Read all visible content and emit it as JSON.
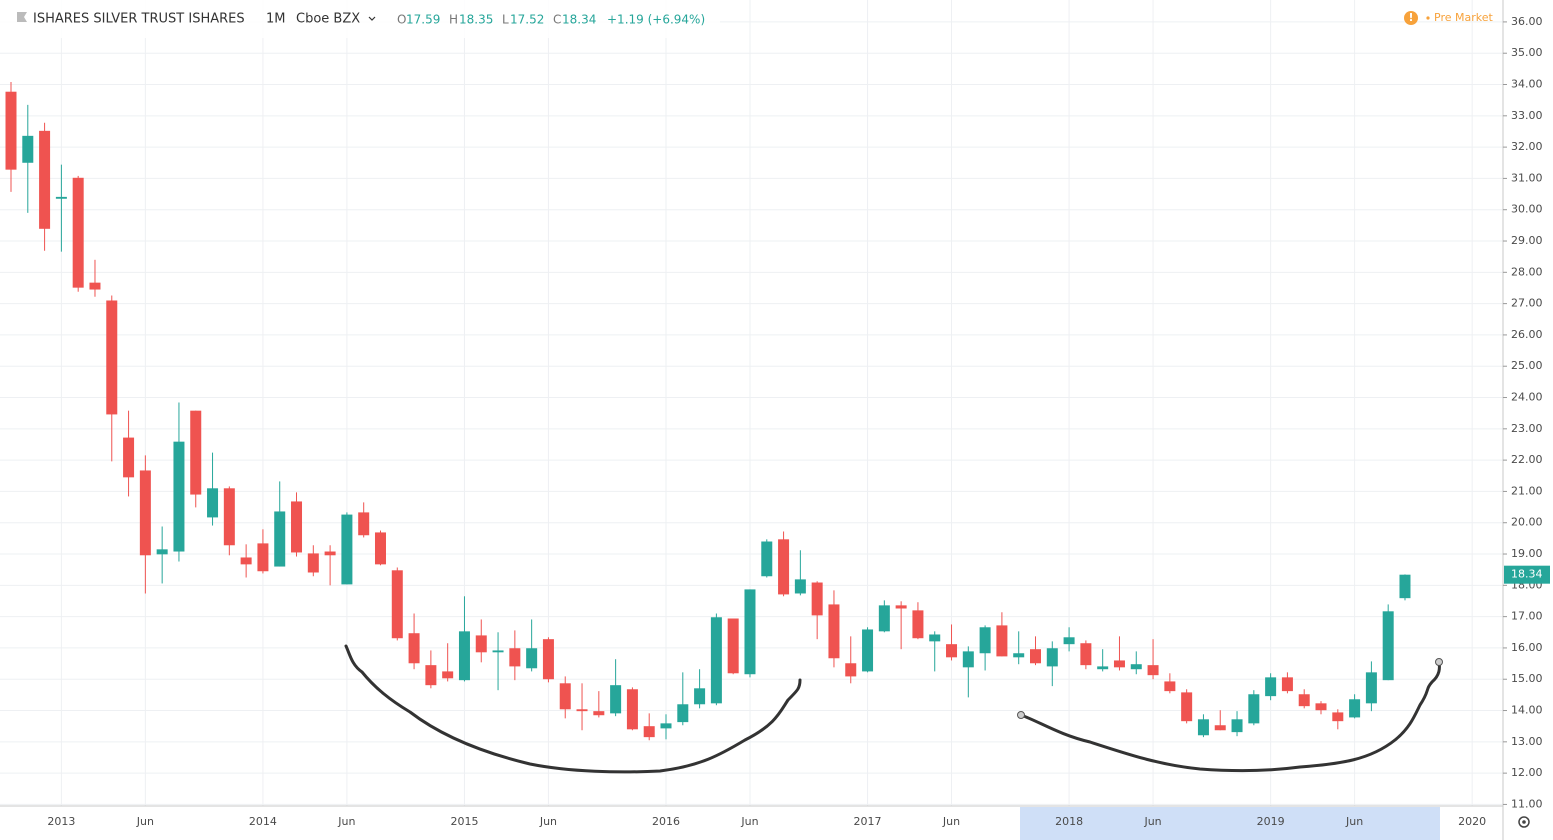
{
  "header": {
    "symbol": "ISHARES SILVER TRUST ISHARES",
    "interval": "1M",
    "exchange": "Cboe BZX",
    "open_label": "O",
    "high_label": "H",
    "low_label": "L",
    "close_label": "C",
    "change": "+1.19 (+6.94%)",
    "status": "Pre Market"
  },
  "chart_data": {
    "type": "candlestick",
    "up_color": "#26a69a",
    "down_color": "#ef5350",
    "grid": true,
    "categories": [
      null,
      null,
      null,
      "2013",
      null,
      null,
      null,
      null,
      "Jun",
      null,
      null,
      null,
      null,
      null,
      null,
      "2014",
      null,
      null,
      null,
      null,
      "Jun",
      null,
      null,
      null,
      null,
      null,
      null,
      "2015",
      null,
      null,
      null,
      null,
      "Jun",
      null,
      null,
      null,
      null,
      null,
      null,
      "2016",
      null,
      null,
      null,
      null,
      "Jun",
      null,
      null,
      null,
      null,
      null,
      null,
      "2017",
      null,
      null,
      null,
      null,
      "Jun",
      null,
      null,
      null,
      null,
      null,
      null,
      "2018",
      null,
      null,
      null,
      null,
      "Jun",
      null,
      null,
      null,
      null,
      null,
      null,
      "2019",
      null,
      null,
      null,
      null,
      "Jun",
      null,
      null,
      null,
      null,
      null,
      null,
      "2020"
    ],
    "open": [
      33.77,
      31.5,
      32.52,
      30.35,
      31.02,
      27.67,
      27.1,
      22.72,
      21.67,
      18.99,
      19.08,
      23.58,
      20.17,
      21.1,
      18.89,
      19.34,
      18.6,
      20.68,
      19.02,
      19.08,
      18.03,
      20.33,
      19.69,
      18.48,
      16.47,
      15.45,
      15.25,
      14.97,
      16.4,
      15.86,
      15.99,
      15.35,
      16.28,
      14.87,
      14.04,
      13.98,
      13.91,
      14.68,
      13.5,
      13.43,
      13.63,
      14.2,
      14.23,
      16.94,
      15.16,
      18.29,
      19.47,
      17.74,
      18.09,
      17.39,
      15.51,
      15.25,
      16.53,
      17.36,
      17.2,
      16.21,
      16.12,
      15.38,
      15.83,
      16.72,
      15.7,
      15.96,
      15.41,
      16.12,
      16.15,
      15.32,
      15.6,
      15.32,
      15.45,
      14.93,
      14.58,
      13.21,
      13.53,
      13.31,
      13.59,
      14.46,
      15.06,
      14.52,
      14.23,
      13.94,
      13.78,
      14.23,
      14.97,
      17.59,
      null,
      null,
      null,
      null
    ],
    "high": [
      34.08,
      33.35,
      32.78,
      31.44,
      31.08,
      28.4,
      27.26,
      23.58,
      22.15,
      19.88,
      23.84,
      23.58,
      22.24,
      21.16,
      19.31,
      19.79,
      21.32,
      20.97,
      19.28,
      19.28,
      20.33,
      20.65,
      19.75,
      18.57,
      17.1,
      15.92,
      16.15,
      17.65,
      16.91,
      16.5,
      16.56,
      16.91,
      16.34,
      15.09,
      14.87,
      14.62,
      15.64,
      14.74,
      13.91,
      13.88,
      15.22,
      15.32,
      17.1,
      16.94,
      17.87,
      19.47,
      19.72,
      19.12,
      18.13,
      17.84,
      16.37,
      16.66,
      17.52,
      17.49,
      17.46,
      16.53,
      16.75,
      16.05,
      16.72,
      17.14,
      16.53,
      16.37,
      16.21,
      16.66,
      16.24,
      15.96,
      16.37,
      15.89,
      16.28,
      15.19,
      14.68,
      13.88,
      14.01,
      13.98,
      14.65,
      15.19,
      15.22,
      14.68,
      14.3,
      14.04,
      14.52,
      15.57,
      17.39,
      18.35,
      null,
      null,
      null,
      null
    ],
    "low": [
      30.57,
      29.9,
      28.69,
      28.66,
      27.38,
      27.22,
      21.96,
      20.84,
      17.74,
      18.06,
      18.76,
      20.49,
      19.91,
      18.96,
      18.25,
      18.38,
      18.6,
      18.92,
      18.29,
      18.0,
      18.03,
      19.53,
      18.64,
      16.24,
      15.32,
      14.71,
      14.93,
      14.93,
      15.54,
      14.65,
      14.97,
      15.25,
      14.9,
      13.75,
      13.37,
      13.78,
      13.82,
      13.37,
      13.05,
      13.08,
      13.53,
      14.07,
      14.17,
      15.16,
      15.06,
      18.25,
      17.65,
      17.68,
      16.28,
      15.38,
      14.87,
      15.22,
      16.5,
      15.96,
      16.28,
      15.25,
      15.6,
      14.42,
      15.28,
      15.73,
      15.48,
      15.45,
      14.78,
      15.89,
      15.32,
      15.25,
      15.28,
      15.16,
      15.0,
      14.55,
      13.59,
      13.15,
      13.37,
      13.18,
      13.53,
      14.33,
      14.55,
      14.07,
      13.88,
      13.4,
      13.75,
      13.98,
      14.97,
      17.52,
      null,
      null,
      null,
      null
    ],
    "close": [
      31.28,
      32.36,
      29.39,
      30.41,
      27.51,
      27.45,
      23.46,
      21.45,
      18.96,
      19.15,
      22.59,
      20.9,
      21.1,
      19.28,
      18.67,
      18.45,
      20.36,
      19.05,
      18.41,
      18.96,
      20.26,
      19.6,
      18.67,
      16.31,
      15.51,
      14.81,
      15.03,
      16.53,
      15.86,
      15.92,
      15.41,
      15.99,
      15.0,
      14.04,
      13.98,
      13.85,
      14.81,
      13.4,
      13.15,
      13.59,
      14.2,
      14.71,
      16.98,
      15.19,
      17.87,
      19.4,
      17.71,
      18.19,
      17.04,
      15.67,
      15.09,
      16.59,
      17.36,
      17.26,
      16.31,
      16.43,
      15.7,
      15.89,
      16.66,
      15.73,
      15.83,
      15.51,
      15.99,
      16.34,
      15.45,
      15.41,
      15.38,
      15.48,
      15.13,
      14.62,
      13.66,
      13.72,
      13.37,
      13.72,
      14.52,
      15.06,
      14.62,
      14.14,
      14.01,
      13.66,
      14.36,
      15.22,
      17.17,
      18.34,
      null,
      null,
      null,
      null
    ],
    "ylim": [
      10.95,
      36.7
    ],
    "yticks": [
      {
        "value": 11,
        "label": "11.00"
      },
      {
        "value": 12,
        "label": "12.00"
      },
      {
        "value": 13,
        "label": "13.00"
      },
      {
        "value": 14,
        "label": "14.00"
      },
      {
        "value": 15,
        "label": "15.00"
      },
      {
        "value": 16,
        "label": "16.00"
      },
      {
        "value": 17,
        "label": "17.00"
      },
      {
        "value": 18,
        "label": "18.00"
      },
      {
        "value": 19,
        "label": "19.00"
      },
      {
        "value": 20,
        "label": "20.00"
      },
      {
        "value": 21,
        "label": "21.00"
      },
      {
        "value": 22,
        "label": "22.00"
      },
      {
        "value": 23,
        "label": "23.00"
      },
      {
        "value": 24,
        "label": "24.00"
      },
      {
        "value": 25,
        "label": "25.00"
      },
      {
        "value": 26,
        "label": "26.00"
      },
      {
        "value": 27,
        "label": "27.00"
      },
      {
        "value": 28,
        "label": "28.00"
      },
      {
        "value": 29,
        "label": "29.00"
      },
      {
        "value": 30,
        "label": "30.00"
      },
      {
        "value": 31,
        "label": "31.00"
      },
      {
        "value": 32,
        "label": "32.00"
      },
      {
        "value": 33,
        "label": "33.00"
      },
      {
        "value": 34,
        "label": "34.00"
      },
      {
        "value": 35,
        "label": "35.00"
      },
      {
        "value": 36,
        "label": "36.00"
      }
    ]
  }
}
